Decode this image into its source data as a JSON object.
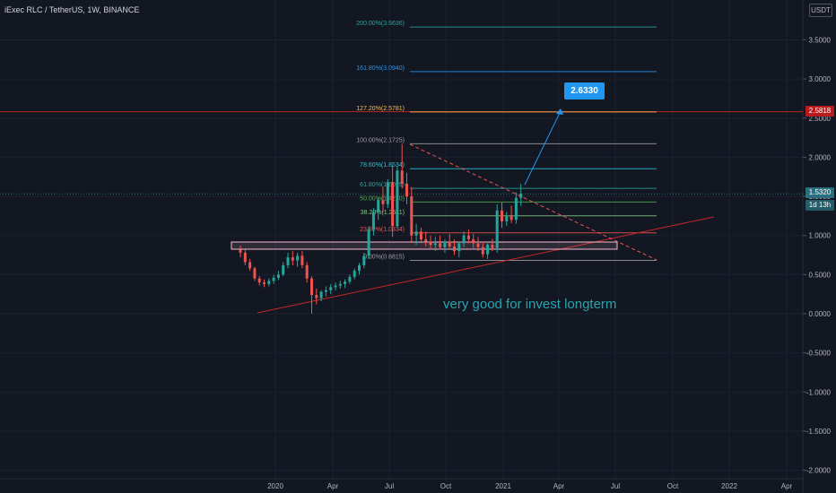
{
  "header": {
    "symbol_line": "iExec RLC / TetherUS, 1W, BINANCE",
    "currency": "USDT"
  },
  "annotation": "very good for invest longterm",
  "target_callout": "2.6330",
  "price_tags": {
    "resistance": "2.5818",
    "last_price": "1.5320",
    "countdown": "1d 13h"
  },
  "colors": {
    "background": "#131722",
    "up": "#26a69a",
    "down": "#ef5350",
    "grid": "#1c2030",
    "support_line": "#c62828",
    "box": "#f8bbd0",
    "arrow": "#2196f3"
  },
  "chart_data": {
    "type": "candlestick",
    "y_axis_ticks": [
      "3.5000",
      "3.0000",
      "2.5000",
      "2.0000",
      "1.5000",
      "1.0000",
      "0.5000",
      "0.0000",
      "-0.5000",
      "-1.0000",
      "-1.5000",
      "-2.0000"
    ],
    "ylim": [
      -2.1,
      3.9
    ],
    "x_axis_labels": [
      "2020",
      "Apr",
      "Jul",
      "Oct",
      "2021",
      "Apr",
      "Jul",
      "Oct",
      "2022",
      "Apr"
    ],
    "fib_levels": [
      {
        "label": "200.00%(3.6636)",
        "value": 3.6636,
        "color": "#26a69a"
      },
      {
        "label": "161.80%(3.0940)",
        "value": 3.094,
        "color": "#2196f3"
      },
      {
        "label": "127.20%(2.5781)",
        "value": 2.5781,
        "color": "#ffb74d"
      },
      {
        "label": "100.00%(2.1725)",
        "value": 2.1725,
        "color": "#9e9e9e"
      },
      {
        "label": "78.60%(1.8534)",
        "value": 1.8534,
        "color": "#26c6da"
      },
      {
        "label": "61.80%(1.6029)",
        "value": 1.6029,
        "color": "#26a69a"
      },
      {
        "label": "50.00%(1.4270)",
        "value": 1.427,
        "color": "#4caf50"
      },
      {
        "label": "38.20%(1.2511)",
        "value": 1.2511,
        "color": "#81c784"
      },
      {
        "label": "23.60%(1.0334)",
        "value": 1.0334,
        "color": "#ef5350"
      },
      {
        "label": "0.00%(0.6815)",
        "value": 0.6815,
        "color": "#9e9e9e"
      }
    ],
    "horizontal_lines": [
      {
        "name": "resistance",
        "value": 2.5818,
        "color": "#c62828"
      },
      {
        "name": "last",
        "value": 1.532,
        "color": "#26a69a"
      }
    ],
    "candles": [
      {
        "o": 0.82,
        "h": 0.87,
        "l": 0.72,
        "c": 0.78
      },
      {
        "o": 0.78,
        "h": 0.82,
        "l": 0.62,
        "c": 0.66
      },
      {
        "o": 0.66,
        "h": 0.7,
        "l": 0.55,
        "c": 0.58
      },
      {
        "o": 0.58,
        "h": 0.6,
        "l": 0.42,
        "c": 0.45
      },
      {
        "o": 0.45,
        "h": 0.48,
        "l": 0.36,
        "c": 0.4
      },
      {
        "o": 0.4,
        "h": 0.44,
        "l": 0.34,
        "c": 0.38
      },
      {
        "o": 0.38,
        "h": 0.45,
        "l": 0.35,
        "c": 0.42
      },
      {
        "o": 0.42,
        "h": 0.5,
        "l": 0.38,
        "c": 0.46
      },
      {
        "o": 0.46,
        "h": 0.55,
        "l": 0.43,
        "c": 0.5
      },
      {
        "o": 0.5,
        "h": 0.66,
        "l": 0.48,
        "c": 0.62
      },
      {
        "o": 0.62,
        "h": 0.78,
        "l": 0.58,
        "c": 0.72
      },
      {
        "o": 0.72,
        "h": 0.8,
        "l": 0.62,
        "c": 0.68
      },
      {
        "o": 0.68,
        "h": 0.78,
        "l": 0.6,
        "c": 0.74
      },
      {
        "o": 0.74,
        "h": 0.8,
        "l": 0.58,
        "c": 0.62
      },
      {
        "o": 0.62,
        "h": 0.66,
        "l": 0.4,
        "c": 0.45
      },
      {
        "o": 0.45,
        "h": 0.48,
        "l": 0.0,
        "c": 0.24
      },
      {
        "o": 0.24,
        "h": 0.32,
        "l": 0.12,
        "c": 0.2
      },
      {
        "o": 0.2,
        "h": 0.3,
        "l": 0.16,
        "c": 0.28
      },
      {
        "o": 0.28,
        "h": 0.35,
        "l": 0.22,
        "c": 0.3
      },
      {
        "o": 0.3,
        "h": 0.38,
        "l": 0.25,
        "c": 0.34
      },
      {
        "o": 0.34,
        "h": 0.4,
        "l": 0.3,
        "c": 0.36
      },
      {
        "o": 0.36,
        "h": 0.42,
        "l": 0.32,
        "c": 0.38
      },
      {
        "o": 0.38,
        "h": 0.44,
        "l": 0.33,
        "c": 0.41
      },
      {
        "o": 0.41,
        "h": 0.5,
        "l": 0.38,
        "c": 0.47
      },
      {
        "o": 0.47,
        "h": 0.58,
        "l": 0.44,
        "c": 0.55
      },
      {
        "o": 0.55,
        "h": 0.65,
        "l": 0.5,
        "c": 0.62
      },
      {
        "o": 0.62,
        "h": 0.78,
        "l": 0.58,
        "c": 0.74
      },
      {
        "o": 0.74,
        "h": 1.12,
        "l": 0.7,
        "c": 1.08
      },
      {
        "o": 1.08,
        "h": 1.35,
        "l": 1.0,
        "c": 1.3
      },
      {
        "o": 1.3,
        "h": 1.48,
        "l": 1.2,
        "c": 1.45
      },
      {
        "o": 1.45,
        "h": 1.62,
        "l": 1.3,
        "c": 1.4
      },
      {
        "o": 1.4,
        "h": 1.72,
        "l": 1.35,
        "c": 1.68
      },
      {
        "o": 1.68,
        "h": 1.9,
        "l": 0.98,
        "c": 1.12
      },
      {
        "o": 1.12,
        "h": 1.88,
        "l": 1.1,
        "c": 1.83
      },
      {
        "o": 1.83,
        "h": 2.17,
        "l": 1.6,
        "c": 1.66
      },
      {
        "o": 1.66,
        "h": 1.8,
        "l": 1.4,
        "c": 1.5
      },
      {
        "o": 1.5,
        "h": 1.62,
        "l": 0.92,
        "c": 1.0
      },
      {
        "o": 1.0,
        "h": 1.15,
        "l": 0.88,
        "c": 1.05
      },
      {
        "o": 1.05,
        "h": 1.1,
        "l": 0.9,
        "c": 0.95
      },
      {
        "o": 0.95,
        "h": 1.05,
        "l": 0.86,
        "c": 0.92
      },
      {
        "o": 0.92,
        "h": 1.0,
        "l": 0.82,
        "c": 0.88
      },
      {
        "o": 0.88,
        "h": 0.98,
        "l": 0.8,
        "c": 0.9
      },
      {
        "o": 0.9,
        "h": 1.0,
        "l": 0.82,
        "c": 0.85
      },
      {
        "o": 0.85,
        "h": 0.95,
        "l": 0.78,
        "c": 0.92
      },
      {
        "o": 0.92,
        "h": 1.02,
        "l": 0.84,
        "c": 0.86
      },
      {
        "o": 0.86,
        "h": 0.95,
        "l": 0.75,
        "c": 0.8
      },
      {
        "o": 0.8,
        "h": 0.92,
        "l": 0.72,
        "c": 0.9
      },
      {
        "o": 0.9,
        "h": 1.05,
        "l": 0.85,
        "c": 1.0
      },
      {
        "o": 1.0,
        "h": 1.08,
        "l": 0.9,
        "c": 0.95
      },
      {
        "o": 0.95,
        "h": 1.02,
        "l": 0.84,
        "c": 0.9
      },
      {
        "o": 0.9,
        "h": 0.98,
        "l": 0.8,
        "c": 0.85
      },
      {
        "o": 0.85,
        "h": 0.92,
        "l": 0.72,
        "c": 0.76
      },
      {
        "o": 0.76,
        "h": 0.9,
        "l": 0.7,
        "c": 0.88
      },
      {
        "o": 0.88,
        "h": 0.96,
        "l": 0.8,
        "c": 0.84
      },
      {
        "o": 0.84,
        "h": 1.4,
        "l": 0.78,
        "c": 1.32
      },
      {
        "o": 1.32,
        "h": 1.42,
        "l": 1.1,
        "c": 1.18
      },
      {
        "o": 1.18,
        "h": 1.3,
        "l": 1.12,
        "c": 1.25
      },
      {
        "o": 1.25,
        "h": 1.38,
        "l": 1.16,
        "c": 1.2
      },
      {
        "o": 1.2,
        "h": 1.55,
        "l": 1.15,
        "c": 1.48
      },
      {
        "o": 1.48,
        "h": 1.66,
        "l": 1.38,
        "c": 1.532
      }
    ]
  }
}
